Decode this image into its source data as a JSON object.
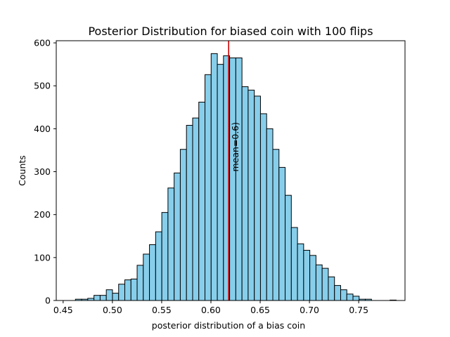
{
  "chart_data": {
    "type": "bar",
    "title": "Posterior Distribution for biased coin with 100 flips",
    "xlabel": "posterior distribution of a bias coin",
    "ylabel": "Counts",
    "xlim": [
      0.443,
      0.797
    ],
    "ylim": [
      0,
      605
    ],
    "xticks": [
      0.45,
      0.5,
      0.55,
      0.6,
      0.65,
      0.7,
      0.75
    ],
    "xtick_labels": [
      "0.45",
      "0.50",
      "0.55",
      "0.60",
      "0.65",
      "0.70",
      "0.75"
    ],
    "yticks": [
      0,
      100,
      200,
      300,
      400,
      500,
      600
    ],
    "ytick_labels": [
      "0",
      "100",
      "200",
      "300",
      "400",
      "500",
      "600"
    ],
    "bin_start": 0.4625,
    "bin_width": 0.00626,
    "counts": [
      3,
      3,
      5,
      12,
      12,
      25,
      17,
      38,
      48,
      50,
      82,
      108,
      130,
      160,
      205,
      262,
      297,
      352,
      408,
      425,
      462,
      526,
      575,
      550,
      570,
      565,
      565,
      498,
      490,
      476,
      435,
      400,
      352,
      310,
      245,
      170,
      132,
      117,
      105,
      83,
      75,
      55,
      35,
      25,
      15,
      10,
      3,
      3,
      0,
      0,
      0,
      1
    ],
    "bar_color": "#87ceeb",
    "edge_color": "#000000",
    "mean": 0.618,
    "mean_line_color": "#cc0000",
    "annotation": "mean=0.6)",
    "annotation_y": 300,
    "grid": false
  }
}
